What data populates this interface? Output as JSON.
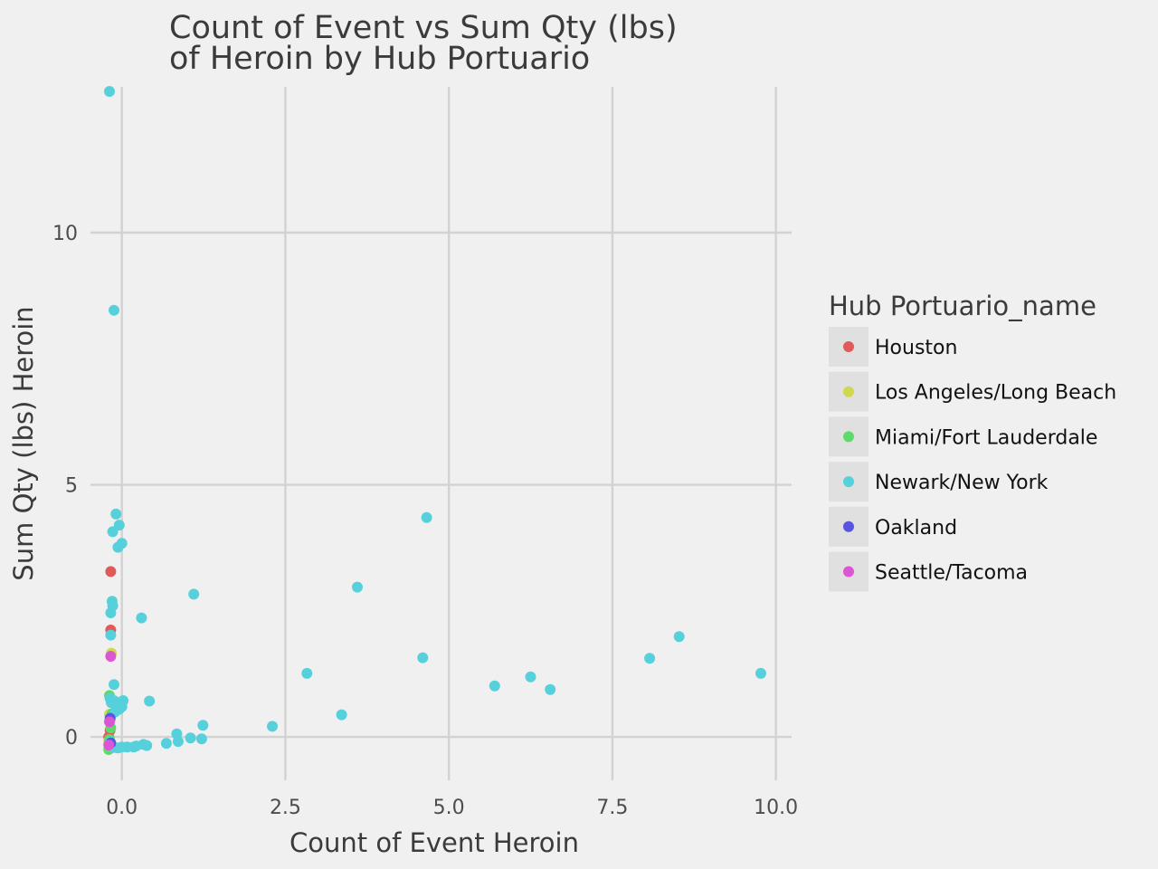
{
  "chart_data": {
    "type": "scatter",
    "title_lines": [
      "Count of Event vs Sum Qty (lbs)",
      "of Heroin by Hub Portuario"
    ],
    "xlabel": "Count of Event Heroin",
    "ylabel": "Sum Qty (lbs) Heroin",
    "xlim": [
      -0.48,
      10.24
    ],
    "ylim": [
      -0.86,
      12.89
    ],
    "x_ticks": [
      {
        "value": 0.0,
        "label": "0.0"
      },
      {
        "value": 2.5,
        "label": "2.5"
      },
      {
        "value": 5.0,
        "label": "5.0"
      },
      {
        "value": 7.5,
        "label": "7.5"
      },
      {
        "value": 10.0,
        "label": "10.0"
      }
    ],
    "y_ticks": [
      {
        "value": 0,
        "label": "0"
      },
      {
        "value": 5,
        "label": "5"
      },
      {
        "value": 10,
        "label": "10"
      }
    ],
    "grid": true,
    "legend": {
      "title": "Hub Portuario_name",
      "position": "right"
    },
    "series": [
      {
        "name": "Houston",
        "color": "#e05a5a",
        "points": [
          [
            -0.17,
            3.28
          ],
          [
            -0.17,
            2.12
          ],
          [
            -0.18,
            0.13
          ],
          [
            -0.19,
            -0.2
          ],
          [
            -0.2,
            0.0
          ]
        ]
      },
      {
        "name": "Los Angeles/Long Beach",
        "color": "#cfd94f",
        "points": [
          [
            -0.16,
            1.66
          ],
          [
            -0.19,
            0.45
          ],
          [
            -0.2,
            -0.08
          ]
        ]
      },
      {
        "name": "Miami/Fort Lauderdale",
        "color": "#5ddb6a",
        "points": [
          [
            -0.19,
            0.82
          ],
          [
            -0.16,
            0.68
          ],
          [
            -0.15,
            0.46
          ],
          [
            -0.18,
            0.35
          ],
          [
            -0.17,
            0.18
          ],
          [
            -0.19,
            -0.05
          ],
          [
            -0.18,
            -0.18
          ],
          [
            -0.2,
            -0.25
          ],
          [
            -0.19,
            -0.22
          ]
        ]
      },
      {
        "name": "Newark/New York",
        "color": "#56d1dc",
        "points": [
          [
            -0.19,
            12.8
          ],
          [
            -0.12,
            8.46
          ],
          [
            -0.09,
            4.42
          ],
          [
            -0.04,
            4.2
          ],
          [
            -0.14,
            4.07
          ],
          [
            0.0,
            3.84
          ],
          [
            -0.06,
            3.76
          ],
          [
            -0.15,
            2.69
          ],
          [
            -0.14,
            2.6
          ],
          [
            -0.17,
            2.46
          ],
          [
            -0.17,
            2.02
          ],
          [
            -0.12,
            1.04
          ],
          [
            -0.18,
            0.76
          ],
          [
            -0.12,
            0.72
          ],
          [
            0.02,
            0.72
          ],
          [
            0.0,
            0.6
          ],
          [
            -0.04,
            0.55
          ],
          [
            -0.1,
            0.5
          ],
          [
            -0.16,
            0.68
          ],
          [
            0.3,
            2.36
          ],
          [
            1.1,
            2.83
          ],
          [
            0.42,
            0.71
          ],
          [
            0.84,
            0.06
          ],
          [
            0.86,
            -0.09
          ],
          [
            1.05,
            -0.02
          ],
          [
            1.22,
            -0.04
          ],
          [
            1.24,
            0.23
          ],
          [
            0.68,
            -0.13
          ],
          [
            0.33,
            -0.15
          ],
          [
            0.38,
            -0.17
          ],
          [
            0.22,
            -0.18
          ],
          [
            0.18,
            -0.2
          ],
          [
            0.08,
            -0.2
          ],
          [
            0.0,
            -0.2
          ],
          [
            -0.06,
            -0.22
          ],
          [
            -0.12,
            -0.21
          ],
          [
            -0.18,
            -0.1
          ],
          [
            2.3,
            0.21
          ],
          [
            2.83,
            1.26
          ],
          [
            3.36,
            0.44
          ],
          [
            3.6,
            2.97
          ],
          [
            4.6,
            1.57
          ],
          [
            4.66,
            4.35
          ],
          [
            5.7,
            1.01
          ],
          [
            6.25,
            1.19
          ],
          [
            6.55,
            0.94
          ],
          [
            8.07,
            1.56
          ],
          [
            8.52,
            1.99
          ],
          [
            9.77,
            1.26
          ]
        ]
      },
      {
        "name": "Oakland",
        "color": "#5a55e0",
        "points": [
          [
            -0.18,
            0.37
          ],
          [
            -0.17,
            -0.12
          ]
        ]
      },
      {
        "name": "Seattle/Tacoma",
        "color": "#dc55d2",
        "points": [
          [
            -0.17,
            1.6
          ],
          [
            -0.19,
            0.3
          ],
          [
            -0.2,
            -0.16
          ]
        ]
      }
    ]
  }
}
